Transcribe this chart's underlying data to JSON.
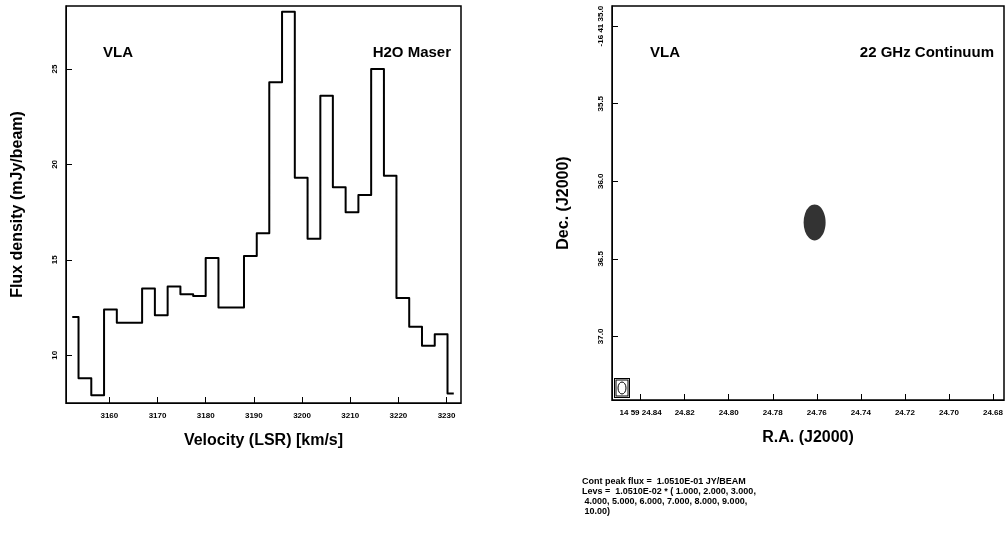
{
  "chart_data": [
    {
      "type": "step",
      "xlabel": "Velocity (LSR) [km/s]",
      "ylabel": "Flux density (mJy/beam)",
      "x": [
        3152.3,
        3154.9,
        3157.6,
        3160.2,
        3162.9,
        3165.5,
        3168.1,
        3170.8,
        3173.4,
        3176.1,
        3178.7,
        3181.3,
        3184.0,
        3186.6,
        3189.3,
        3191.9,
        3194.5,
        3197.2,
        3199.8,
        3202.5,
        3205.1,
        3207.7,
        3210.4,
        3213.0,
        3215.7,
        3218.3,
        3220.9,
        3223.6,
        3226.2,
        3228.9,
        3231.5
      ],
      "series": [
        {
          "color": "#000000",
          "values": [
            12.0,
            8.8,
            7.9,
            12.4,
            11.7,
            11.7,
            13.5,
            12.1,
            13.6,
            13.2,
            13.1,
            15.1,
            12.5,
            12.5,
            15.2,
            16.4,
            24.3,
            28.0,
            19.3,
            16.1,
            23.6,
            18.8,
            17.5,
            18.4,
            25.0,
            19.4,
            13.0,
            11.5,
            10.5,
            11.1,
            8.0
          ]
        }
      ],
      "xlim": [
        3151,
        3233
      ],
      "xticks": [
        3160,
        3170,
        3180,
        3190,
        3200,
        3210,
        3220,
        3230
      ],
      "ylim": [
        7.5,
        28.3
      ],
      "yticks": [
        10,
        15,
        20,
        25
      ],
      "annotations": [
        "VLA",
        "H2O Maser"
      ]
    },
    {
      "type": "scatter",
      "xlabel": "R.A. (J2000)",
      "ylabel": "Dec. (J2000)",
      "marker": "circle",
      "x": [
        24.761
      ],
      "series": [
        {
          "color": "#000000",
          "values": [
            36.265
          ]
        }
      ],
      "xlim": [
        24.853,
        24.675
      ],
      "xticks": [
        {
          "value": 24.84,
          "label": "14 59 24.84"
        },
        24.82,
        {
          "value": 24.8,
          "label": "24.80"
        },
        24.78,
        24.76,
        24.74,
        24.72,
        {
          "value": 24.7,
          "label": "24.70"
        },
        24.68
      ],
      "ylim": [
        37.41,
        34.87
      ],
      "yticks": [
        {
          "value": 35.0,
          "label": "-16 41 35.0"
        },
        35.5,
        {
          "value": 36,
          "label": "36.0"
        },
        36.5,
        {
          "value": 37,
          "label": "37.0"
        }
      ],
      "annotations": [
        "VLA",
        "22 GHz Continuum",
        "Cont peak flux =  1.0510E-01 JY/BEAM\nLevs =  1.0510E-02 * ( 1.000, 2.000, 3.000,\n 4.000, 5.000, 6.000, 7.000, 8.000, 9.000,\n 10.00)"
      ]
    }
  ]
}
